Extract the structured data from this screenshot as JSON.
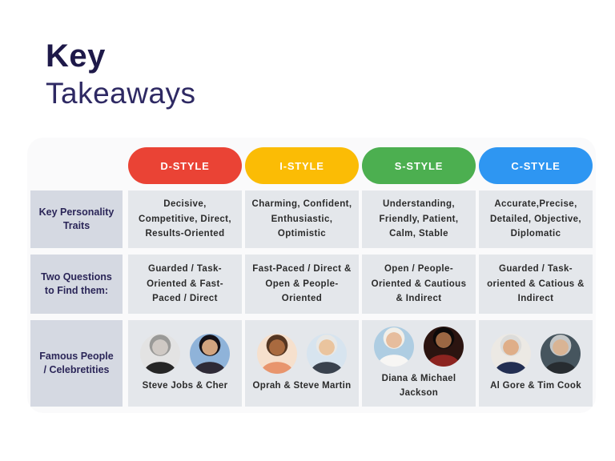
{
  "title": {
    "line1": "Key",
    "line2": "Takeaways"
  },
  "palette": {
    "title_dark": "#1e1949",
    "title_light": "#2e2963",
    "label_column_bg": "#d5d9e2",
    "cell_bg": "#e4e7eb",
    "label_text": "#2b2658",
    "cell_text": "#2b2b2b"
  },
  "table": {
    "row_labels": {
      "traits": "Key Personality Traits",
      "questions": "Two Questions to Find them:",
      "famous": "Famous People / Celebretities"
    },
    "styles": [
      {
        "label": "D-STYLE",
        "color": "#ea4335",
        "traits": "Decisive, Competitive, Direct, Results-Oriented",
        "questions": "Guarded / Task-Oriented & Fast-Paced / Direct",
        "famous": "Steve Jobs & Cher",
        "people": [
          "Steve Jobs",
          "Cher"
        ]
      },
      {
        "label": "I-STYLE",
        "color": "#fbbc05",
        "traits": "Charming, Confident, Enthusiastic, Optimistic",
        "questions": "Fast-Paced / Direct & Open & People-Oriented",
        "famous": "Oprah & Steve Martin",
        "people": [
          "Oprah",
          "Steve Martin"
        ]
      },
      {
        "label": "S-STYLE",
        "color": "#4caf50",
        "traits": "Understanding, Friendly, Patient, Calm, Stable",
        "questions": "Open / People-Oriented & Cautious & Indirect",
        "famous": "Diana & Michael Jackson",
        "people": [
          "Diana",
          "Michael Jackson"
        ]
      },
      {
        "label": "C-STYLE",
        "color": "#2e96f2",
        "traits": "Accurate,Precise, Detailed, Objective, Diplomatic",
        "questions": "Guarded / Task-oriented & Catious & Indirect",
        "famous": "Al Gore & Tim Cook",
        "people": [
          "Al Gore",
          "Tim Cook"
        ]
      }
    ]
  }
}
